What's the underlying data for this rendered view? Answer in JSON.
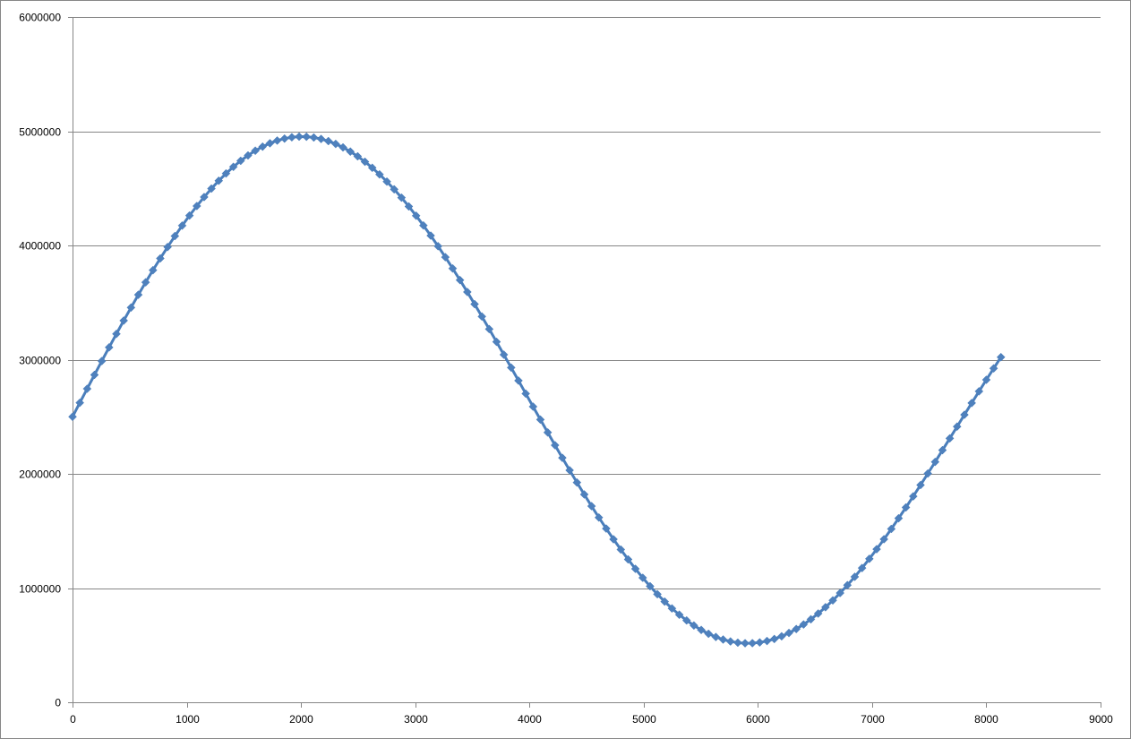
{
  "chart_data": {
    "type": "scatter",
    "title": "",
    "xlabel": "",
    "ylabel": "",
    "xlim": [
      0,
      9000
    ],
    "ylim": [
      0,
      6000000
    ],
    "x_ticks": [
      0,
      1000,
      2000,
      3000,
      4000,
      5000,
      6000,
      7000,
      8000,
      9000
    ],
    "y_ticks": [
      0,
      1000000,
      2000000,
      3000000,
      4000000,
      5000000,
      6000000
    ],
    "x_tick_labels": [
      "0",
      "1000",
      "2000",
      "3000",
      "4000",
      "5000",
      "6000",
      "7000",
      "8000",
      "9000"
    ],
    "y_tick_labels": [
      "0",
      "1000000",
      "2000000",
      "3000000",
      "4000000",
      "5000000",
      "6000000"
    ],
    "grid": {
      "horizontal": true,
      "vertical": false
    },
    "legend": "none",
    "marker": "diamond",
    "lines_connected": true,
    "series": [
      {
        "x_start": 0,
        "x_step": 64,
        "count": 128,
        "values": [
          2500000,
          2622652,
          2745002,
          2866747,
          2987587,
          3107223,
          3225358,
          3341698,
          3455953,
          3567836,
          3677066,
          3783365,
          3886465,
          3986102,
          4082020,
          4173974,
          4261728,
          4345057,
          4423746,
          4497595,
          4566414,
          4630030,
          4688285,
          4741033,
          4788145,
          4829506,
          4865020,
          4894605,
          4918195,
          4935742,
          4947214,
          4952596,
          4951888,
          4945110,
          4932297,
          4913499,
          4888783,
          4858232,
          4821945,
          4780034,
          4732626,
          4679860,
          4621891,
          4558885,
          4491021,
          4418491,
          4341497,
          4260252,
          4174980,
          4085914,
          3993295,
          3897374,
          3798410,
          3696667,
          3592418,
          3485940,
          3377516,
          3267432,
          3155980,
          3043453,
          2930149,
          2816364,
          2702397,
          2588548,
          2475115,
          2362395,
          2250683,
          2140271,
          2031447,
          1924496,
          1819697,
          1717323,
          1617642,
          1520912,
          1427386,
          1337305,
          1250904,
          1168408,
          1090030,
          1015975,
          946435,
          881592,
          821617,
          766664,
          716876,
          672380,
          633292,
          599711,
          571724,
          549399,
          532789,
          521934,
          516858,
          517567,
          524050,
          536280,
          554211,
          577783,
          606917,
          641519,
          681478,
          726666,
          776942,
          832148,
          892110,
          956640,
          1025539,
          1098593,
          1175577,
          1256254,
          1340378,
          1427688,
          1517919,
          1610796,
          1706036,
          1803350,
          1902442,
          2003009,
          2104744,
          2207340,
          2310487,
          2413873,
          2517185,
          2620112,
          2722343,
          2823570,
          2923488,
          3021796
        ]
      }
    ],
    "colors": {
      "series_line": "#4a7ebb",
      "series_marker": "#4f81bd",
      "gridline": "#868686",
      "axis": "#868686",
      "frame": "#878787"
    }
  }
}
